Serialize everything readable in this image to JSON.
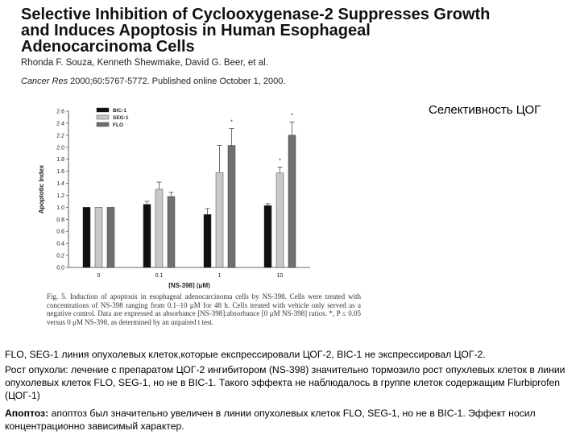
{
  "paper": {
    "title_line1": "Selective Inhibition of Cyclooxygenase-2 Suppresses Growth",
    "title_line2": "and Induces Apoptosis in Human Esophageal",
    "title_line3": "Adenocarcinoma Cells",
    "authors": "Rhonda F. Souza, Kenneth Shewmake, David G. Beer, et al.",
    "journal": "Cancer Res",
    "citation_rest": " 2000;60:5767-5772. Published online October 1, 2000."
  },
  "side_label": "Селективность ЦОГ",
  "chart_data": {
    "type": "bar",
    "xlabel": "[NS-398]  (μM)",
    "ylabel": "Apoptotic Index",
    "ylim": [
      0,
      2.6
    ],
    "yticks": [
      "0.0",
      "0.2",
      "0.4",
      "0.6",
      "0.8",
      "1.0",
      "1.2",
      "1.4",
      "1.6",
      "1.8",
      "2.0",
      "2.2",
      "2.4",
      "2.6"
    ],
    "categories": [
      "0",
      "0.1",
      "1",
      "10"
    ],
    "series": [
      {
        "name": "BIC-1",
        "color": "#111111",
        "values": [
          1.0,
          1.05,
          0.88,
          1.03
        ],
        "errors": [
          0.0,
          0.05,
          0.1,
          0.03
        ]
      },
      {
        "name": "SEG-1",
        "color": "#c8c8c8",
        "values": [
          1.0,
          1.3,
          1.58,
          1.57
        ],
        "errors": [
          0.0,
          0.12,
          0.45,
          0.1
        ]
      },
      {
        "name": "FLO",
        "color": "#707070",
        "values": [
          1.0,
          1.18,
          2.03,
          2.2
        ],
        "errors": [
          0.0,
          0.07,
          0.28,
          0.22
        ]
      }
    ],
    "significance": [
      {
        "category": "1",
        "series": "FLO",
        "mark": "*"
      },
      {
        "category": "10",
        "series": "SEG-1",
        "mark": "*"
      },
      {
        "category": "10",
        "series": "FLO",
        "mark": "*"
      }
    ]
  },
  "figure_caption": {
    "text": "Fig. 5. Induction of apoptosis in esophageal adenocarcinoma cells by NS-398. Cells were treated with concentrations of NS-398 ranging from 0.1–10 μM for 48 h. Cells treated with vehicle only served as a negative control. Data are expressed as absorbance [NS-398]:absorbance [0 μM NS-398] ratios. *, P ≤ 0.05 versus 0 μM NS-398, as determined by an unpaired t test."
  },
  "body": {
    "p1": "FLO, SEG-1 линия опухолевых клеток,которые експрессировали ЦОГ-2, BIC-1 не экспрессировал ЦОГ-2.",
    "p2": "Рост опухоли: лечение с препаратом ЦОГ-2 ингибитором (NS-398) значительно тормозило рост опухлевых клеток в линии опухолевых клеток FLO, SEG-1, но не в BIC-1. Такого эффекта не наблюдалось в группе клеток содержащим Flurbiprofen (ЦОГ-1)",
    "p3_label": "Апоптоз:",
    "p3_text": " апоптоз был значительно увеличен в линии опухолевых клеток FLO, SEG-1, но не в BIC-1. Эффект носил концентрационно зависимый характер."
  }
}
